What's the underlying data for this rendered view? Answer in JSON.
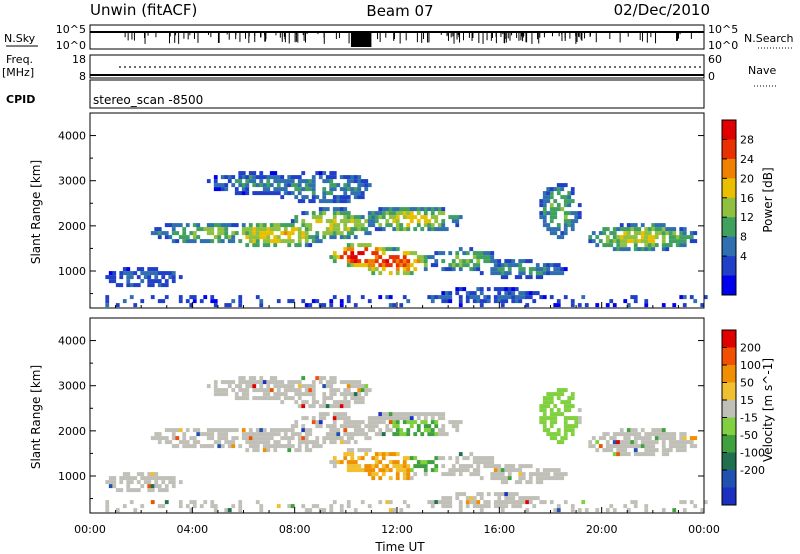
{
  "header": {
    "station": "Unwin (fitACF)",
    "beam": "Beam 07",
    "date": "02/Dec/2010"
  },
  "top_panels": {
    "nsky_label": "N.Sky",
    "nsky_ticks": [
      "10^5",
      "10^0"
    ],
    "nsearch_label": "N.Search",
    "nsearch_ticks": [
      "10^5",
      "10^0"
    ],
    "freq_label": "Freq.",
    "freq_unit": "[MHz]",
    "freq_ticks": [
      "18",
      "8"
    ],
    "nave_label": "Nave",
    "nave_ticks": [
      "60",
      "0"
    ],
    "cpid_label": "CPID",
    "cpid_value": "stereo_scan -8500"
  },
  "chart_data": [
    {
      "type": "heatmap",
      "name": "power",
      "ylabel": "Slant Range [km]",
      "yticks": [
        1000,
        2000,
        3000,
        4000
      ],
      "ylim": [
        180,
        4500
      ],
      "xlim": [
        0,
        24
      ],
      "colorbar_label": "Power [dB]",
      "colorbar_ticks": [
        "28",
        "24",
        "20",
        "16",
        "12",
        "8",
        "4"
      ],
      "colors": [
        "#0000ee",
        "#2040c8",
        "#3070b0",
        "#40a060",
        "#90c040",
        "#e8c000",
        "#f08000",
        "#e83000",
        "#e00000"
      ]
    },
    {
      "type": "heatmap",
      "name": "velocity",
      "ylabel": "Slant Range [km]",
      "yticks": [
        1000,
        2000,
        3000,
        4000
      ],
      "ylim": [
        180,
        4500
      ],
      "xlim": [
        0,
        24
      ],
      "colorbar_label": "Velocity [m s^-1]",
      "colorbar_ticks": [
        "200",
        "100",
        "50",
        "15",
        "-15",
        "-50",
        "-100",
        "-200"
      ],
      "colors": [
        "#1a30c0",
        "#2050b0",
        "#207050",
        "#40a040",
        "#80d040",
        "#c0c0b8",
        "#f0c030",
        "#f09000",
        "#f05000",
        "#e00000"
      ]
    }
  ],
  "x_axis": {
    "ticks": [
      "00:00",
      "04:00",
      "08:00",
      "12:00",
      "16:00",
      "20:00",
      "00:00"
    ],
    "label": "Time UT"
  }
}
